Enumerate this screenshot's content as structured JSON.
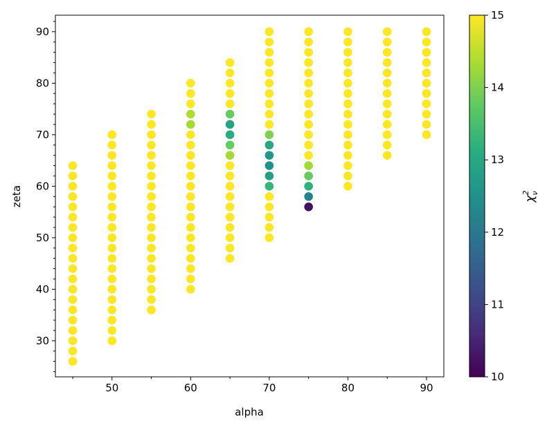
{
  "chart_data": {
    "type": "scatter",
    "xlabel": "alpha",
    "ylabel": "zeta",
    "xlim": [
      42.8,
      92.2
    ],
    "ylim": [
      23,
      93.2
    ],
    "xticks": [
      50,
      60,
      70,
      80,
      90
    ],
    "yticks": [
      30,
      40,
      50,
      60,
      70,
      80,
      90
    ],
    "grid": false,
    "colorbar": {
      "label": "χ²_ν",
      "label_main": "χ",
      "label_sup": "2",
      "label_sub": "ν",
      "colormap": "viridis",
      "vmin": 10,
      "vmax": 15,
      "ticks": [
        10,
        11,
        12,
        13,
        14,
        15
      ]
    },
    "default_value": 15,
    "columns": [
      {
        "alpha": 45,
        "zeta_min": 26,
        "zeta_max": 64
      },
      {
        "alpha": 50,
        "zeta_min": 30,
        "zeta_max": 70
      },
      {
        "alpha": 55,
        "zeta_min": 36,
        "zeta_max": 74
      },
      {
        "alpha": 60,
        "zeta_min": 40,
        "zeta_max": 80
      },
      {
        "alpha": 65,
        "zeta_min": 46,
        "zeta_max": 84
      },
      {
        "alpha": 70,
        "zeta_min": 50,
        "zeta_max": 90
      },
      {
        "alpha": 75,
        "zeta_min": 56,
        "zeta_max": 90
      },
      {
        "alpha": 80,
        "zeta_min": 60,
        "zeta_max": 90
      },
      {
        "alpha": 85,
        "zeta_min": 66,
        "zeta_max": 90
      },
      {
        "alpha": 90,
        "zeta_min": 70,
        "zeta_max": 90
      }
    ],
    "highlighted_points": [
      {
        "alpha": 60,
        "zeta": 74,
        "value": 14.4
      },
      {
        "alpha": 60,
        "zeta": 72,
        "value": 14.3
      },
      {
        "alpha": 65,
        "zeta": 74,
        "value": 13.8
      },
      {
        "alpha": 65,
        "zeta": 72,
        "value": 12.9
      },
      {
        "alpha": 65,
        "zeta": 70,
        "value": 13.1
      },
      {
        "alpha": 65,
        "zeta": 68,
        "value": 13.8
      },
      {
        "alpha": 65,
        "zeta": 66,
        "value": 14.3
      },
      {
        "alpha": 70,
        "zeta": 70,
        "value": 14.0
      },
      {
        "alpha": 70,
        "zeta": 68,
        "value": 13.0
      },
      {
        "alpha": 70,
        "zeta": 66,
        "value": 12.6
      },
      {
        "alpha": 70,
        "zeta": 64,
        "value": 12.5
      },
      {
        "alpha": 70,
        "zeta": 62,
        "value": 12.8
      },
      {
        "alpha": 70,
        "zeta": 60,
        "value": 13.3
      },
      {
        "alpha": 75,
        "zeta": 64,
        "value": 14.3
      },
      {
        "alpha": 75,
        "zeta": 62,
        "value": 13.8
      },
      {
        "alpha": 75,
        "zeta": 60,
        "value": 13.2
      },
      {
        "alpha": 75,
        "zeta": 58,
        "value": 12.2
      },
      {
        "alpha": 75,
        "zeta": 56,
        "value": 10.2
      }
    ]
  }
}
